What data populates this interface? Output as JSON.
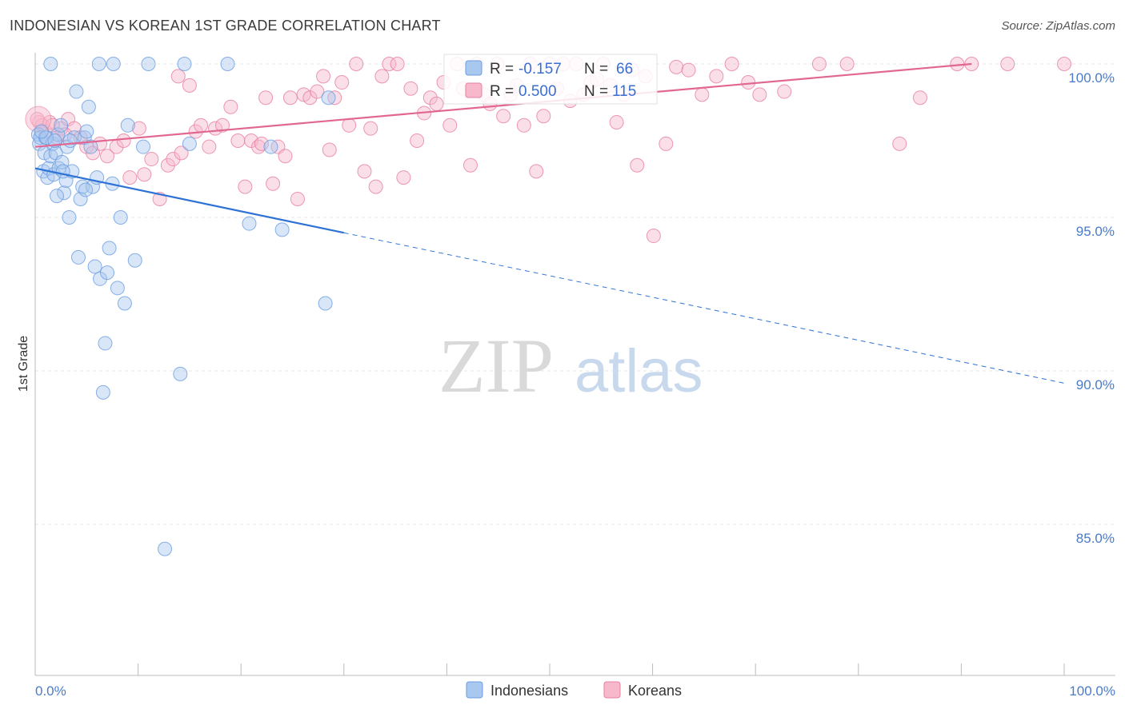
{
  "title": "INDONESIAN VS KOREAN 1ST GRADE CORRELATION CHART",
  "source": "Source: ZipAtlas.com",
  "watermark": {
    "zip": "ZIP",
    "atlas": "atlas"
  },
  "legend": {
    "rows": [
      {
        "r_label": "R = ",
        "r_value": "-0.157",
        "n_label": "N = ",
        "n_value": "66",
        "color": "#a8c8f0",
        "stroke": "#6b9de0"
      },
      {
        "r_label": "R = ",
        "r_value": "0.500",
        "n_label": "N = ",
        "n_value": "115",
        "color": "#f7b8cc",
        "stroke": "#e77fa0"
      }
    ]
  },
  "bottom_legend": [
    {
      "label": "Indonesians",
      "color": "#a8c8f0",
      "stroke": "#6b9de0"
    },
    {
      "label": "Koreans",
      "color": "#f7b8cc",
      "stroke": "#e77fa0"
    }
  ],
  "chart_data": {
    "type": "scatter",
    "ylabel": "1st Grade",
    "x_tick_labels": [
      "0.0%",
      "100.0%"
    ],
    "y_tick_labels": [
      "100.0%",
      "95.0%",
      "90.0%",
      "85.0%"
    ],
    "y_tick_values": [
      100,
      95,
      90,
      85
    ],
    "xlim": [
      0,
      100
    ],
    "ylim": [
      80.5,
      100.9
    ],
    "grid": true,
    "colors": {
      "indonesians": "#6b9de0",
      "koreans": "#e77fa0"
    },
    "series": [
      {
        "name": "Indonesians",
        "trend": {
          "x0": 0,
          "y0": 96.6,
          "x1": 30,
          "y1": 94.5,
          "dash_to_x": 100,
          "dash_to_y": 89.6
        },
        "points": [
          [
            0.3,
            97.7
          ],
          [
            0.4,
            97.4
          ],
          [
            0.5,
            97.6
          ],
          [
            0.8,
            96.5
          ],
          [
            0.9,
            97.1
          ],
          [
            1.0,
            97.6
          ],
          [
            1.2,
            96.3
          ],
          [
            1.3,
            96.6
          ],
          [
            1.5,
            97.0
          ],
          [
            1.7,
            97.4
          ],
          [
            1.8,
            96.4
          ],
          [
            2.0,
            97.1
          ],
          [
            2.2,
            97.7
          ],
          [
            2.3,
            96.6
          ],
          [
            2.5,
            98.0
          ],
          [
            2.6,
            96.8
          ],
          [
            2.8,
            95.8
          ],
          [
            3.0,
            96.2
          ],
          [
            3.1,
            97.3
          ],
          [
            3.3,
            95.0
          ],
          [
            3.6,
            96.5
          ],
          [
            3.8,
            97.6
          ],
          [
            4.0,
            99.1
          ],
          [
            4.2,
            93.7
          ],
          [
            4.4,
            95.6
          ],
          [
            4.6,
            96.0
          ],
          [
            4.8,
            97.6
          ],
          [
            5.0,
            97.8
          ],
          [
            5.2,
            98.6
          ],
          [
            5.4,
            97.3
          ],
          [
            5.6,
            96.0
          ],
          [
            5.8,
            93.4
          ],
          [
            6.0,
            96.3
          ],
          [
            6.3,
            93.0
          ],
          [
            6.6,
            89.3
          ],
          [
            6.8,
            90.9
          ],
          [
            7.0,
            93.2
          ],
          [
            7.2,
            94.0
          ],
          [
            7.5,
            96.1
          ],
          [
            7.6,
            100.0
          ],
          [
            8.0,
            92.7
          ],
          [
            8.3,
            95.0
          ],
          [
            8.7,
            92.2
          ],
          [
            9.0,
            98.0
          ],
          [
            9.7,
            93.6
          ],
          [
            10.5,
            97.3
          ],
          [
            12.6,
            84.2
          ],
          [
            14.1,
            89.9
          ],
          [
            14.5,
            100.0
          ],
          [
            15.0,
            97.4
          ],
          [
            18.7,
            100.0
          ],
          [
            20.8,
            94.8
          ],
          [
            22.9,
            97.3
          ],
          [
            24.0,
            94.6
          ],
          [
            28.2,
            92.2
          ],
          [
            28.5,
            98.9
          ],
          [
            1.5,
            100.0
          ],
          [
            6.2,
            100.0
          ],
          [
            11.0,
            100.0
          ],
          [
            3.4,
            97.5
          ],
          [
            2.1,
            95.7
          ],
          [
            4.9,
            95.9
          ],
          [
            1.1,
            97.6
          ],
          [
            0.6,
            97.8
          ],
          [
            1.9,
            97.5
          ],
          [
            2.7,
            96.5
          ]
        ]
      },
      {
        "name": "Koreans",
        "trend": {
          "x0": 0,
          "y0": 97.3,
          "x1": 91,
          "y1": 100.0
        },
        "points": [
          [
            0.4,
            98.1
          ],
          [
            0.7,
            98.0
          ],
          [
            1.0,
            97.8
          ],
          [
            1.4,
            98.1
          ],
          [
            2.1,
            97.6
          ],
          [
            2.5,
            97.9
          ],
          [
            3.2,
            98.2
          ],
          [
            3.8,
            97.9
          ],
          [
            4.4,
            97.6
          ],
          [
            5.0,
            97.3
          ],
          [
            5.6,
            97.1
          ],
          [
            6.3,
            97.4
          ],
          [
            7.0,
            97.0
          ],
          [
            7.9,
            97.3
          ],
          [
            8.6,
            97.5
          ],
          [
            9.2,
            96.3
          ],
          [
            10.1,
            97.9
          ],
          [
            10.6,
            96.4
          ],
          [
            11.3,
            96.9
          ],
          [
            12.1,
            95.6
          ],
          [
            12.9,
            96.7
          ],
          [
            13.4,
            96.9
          ],
          [
            14.2,
            97.1
          ],
          [
            15.0,
            99.3
          ],
          [
            15.6,
            97.8
          ],
          [
            16.1,
            98.0
          ],
          [
            16.9,
            97.3
          ],
          [
            17.5,
            97.9
          ],
          [
            18.2,
            98.0
          ],
          [
            19.0,
            98.6
          ],
          [
            19.7,
            97.5
          ],
          [
            20.4,
            96.0
          ],
          [
            21.0,
            97.5
          ],
          [
            21.7,
            97.3
          ],
          [
            22.4,
            98.9
          ],
          [
            23.1,
            96.1
          ],
          [
            23.6,
            97.3
          ],
          [
            24.3,
            97.0
          ],
          [
            24.8,
            98.9
          ],
          [
            25.5,
            95.6
          ],
          [
            26.1,
            99.0
          ],
          [
            26.7,
            98.9
          ],
          [
            27.4,
            99.1
          ],
          [
            28.0,
            99.6
          ],
          [
            28.6,
            97.2
          ],
          [
            29.1,
            98.9
          ],
          [
            29.8,
            99.4
          ],
          [
            30.5,
            98.0
          ],
          [
            31.2,
            100.0
          ],
          [
            32.0,
            96.5
          ],
          [
            32.6,
            97.9
          ],
          [
            33.1,
            96.0
          ],
          [
            33.7,
            99.6
          ],
          [
            34.4,
            100.0
          ],
          [
            35.2,
            100.0
          ],
          [
            35.8,
            96.3
          ],
          [
            36.5,
            99.2
          ],
          [
            37.1,
            97.5
          ],
          [
            37.8,
            98.4
          ],
          [
            38.4,
            98.9
          ],
          [
            39.0,
            98.7
          ],
          [
            39.7,
            99.4
          ],
          [
            40.3,
            98.0
          ],
          [
            41.0,
            100.0
          ],
          [
            41.6,
            99.2
          ],
          [
            42.3,
            96.7
          ],
          [
            42.9,
            100.0
          ],
          [
            43.6,
            99.0
          ],
          [
            44.2,
            98.7
          ],
          [
            44.9,
            100.0
          ],
          [
            45.5,
            98.3
          ],
          [
            46.2,
            99.0
          ],
          [
            46.8,
            99.3
          ],
          [
            47.5,
            98.0
          ],
          [
            48.1,
            100.0
          ],
          [
            48.7,
            96.5
          ],
          [
            49.4,
            98.3
          ],
          [
            50.0,
            100.0
          ],
          [
            50.7,
            99.2
          ],
          [
            51.3,
            100.0
          ],
          [
            52.0,
            98.8
          ],
          [
            52.6,
            100.0
          ],
          [
            53.3,
            99.0
          ],
          [
            54.0,
            99.4
          ],
          [
            54.6,
            99.5
          ],
          [
            55.2,
            100.0
          ],
          [
            55.9,
            99.3
          ],
          [
            56.5,
            98.1
          ],
          [
            57.2,
            99.0
          ],
          [
            58.0,
            99.8
          ],
          [
            58.5,
            96.7
          ],
          [
            59.3,
            99.6
          ],
          [
            60.1,
            94.4
          ],
          [
            61.3,
            97.4
          ],
          [
            62.3,
            99.9
          ],
          [
            63.5,
            99.8
          ],
          [
            64.8,
            99.0
          ],
          [
            66.2,
            99.6
          ],
          [
            67.7,
            100.0
          ],
          [
            69.3,
            99.4
          ],
          [
            70.4,
            99.0
          ],
          [
            72.8,
            99.1
          ],
          [
            76.2,
            100.0
          ],
          [
            78.9,
            100.0
          ],
          [
            84.0,
            97.4
          ],
          [
            86.0,
            98.9
          ],
          [
            89.6,
            100.0
          ],
          [
            91.0,
            100.0
          ],
          [
            94.5,
            100.0
          ],
          [
            100.0,
            100.0
          ],
          [
            0.2,
            98.2
          ],
          [
            1.7,
            98.0
          ],
          [
            2.9,
            97.7
          ],
          [
            13.9,
            99.6
          ],
          [
            22.0,
            97.4
          ]
        ]
      }
    ]
  }
}
